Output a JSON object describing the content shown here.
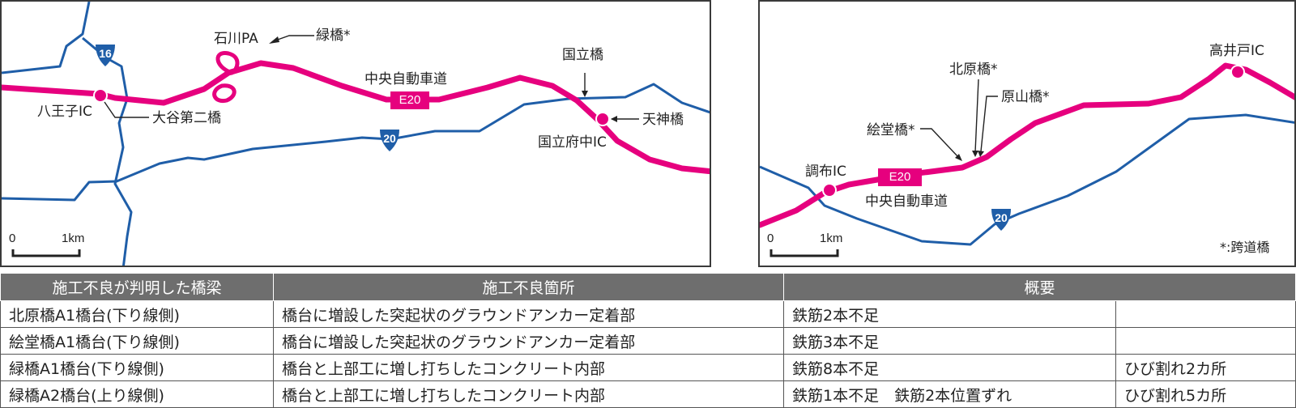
{
  "map_left": {
    "labels": {
      "ishikawa_pa": "石川PA",
      "midori_bashi": "緑橋*",
      "route16": "16",
      "hachioji_ic": "八王子IC",
      "otani_daini": "大谷第二橋",
      "chuo_expressway": "中央自動車道",
      "e20": "E20",
      "kunitachi_bashi": "国立橋",
      "tenjin_bashi": "天神橋",
      "kunitachi_fuchu_ic": "国立府中IC",
      "route20": "20"
    },
    "scale": {
      "zero": "0",
      "unit": "1km"
    }
  },
  "map_right": {
    "labels": {
      "takaido_ic": "高井戸IC",
      "kitahara_bashi": "北原橋*",
      "harayama_bashi": "原山橋*",
      "edo_bashi": "絵堂橋*",
      "chofu_ic": "調布IC",
      "e20": "E20",
      "chuo_expressway": "中央自動車道",
      "route20": "20",
      "note": "*:跨道橋"
    },
    "scale": {
      "zero": "0",
      "unit": "1km"
    }
  },
  "colors": {
    "expressway": "#e6007e",
    "road": "#1f5ea8",
    "route_shield": "#1f5ea8",
    "header_bg": "#6e6e6e"
  },
  "table": {
    "headers": [
      "施工不良が判明した橋梁",
      "施工不良箇所",
      "概要"
    ],
    "rows": [
      [
        "北原橋A1橋台(下り線側)",
        "橋台に増設した突起状のグラウンドアンカー定着部",
        "鉄筋2本不足",
        ""
      ],
      [
        "絵堂橋A1橋台(下り線側)",
        "橋台に増設した突起状のグラウンドアンカー定着部",
        "鉄筋3本不足",
        ""
      ],
      [
        "緑橋A1橋台(下り線側)",
        "橋台と上部工に増し打ちしたコンクリート内部",
        "鉄筋8本不足",
        "ひび割れ2カ所"
      ],
      [
        "緑橋A2橋台(上り線側)",
        "橋台と上部工に増し打ちしたコンクリート内部",
        "鉄筋1本不足　鉄筋2本位置ずれ",
        "ひび割れ5カ所"
      ]
    ]
  }
}
